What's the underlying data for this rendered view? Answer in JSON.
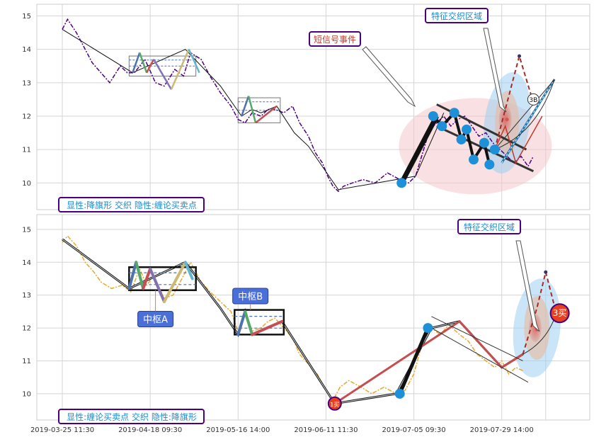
{
  "chart_data": [
    {
      "type": "line",
      "panel": "top",
      "y_ticks": [
        10,
        11,
        12,
        13,
        14,
        15
      ],
      "ylim": [
        9.2,
        15.35
      ],
      "grid": true,
      "price_color": "#4b0082",
      "price": [
        [
          0,
          14.6
        ],
        [
          3,
          14.9
        ],
        [
          8,
          14.5
        ],
        [
          12,
          14.1
        ],
        [
          17,
          13.6
        ],
        [
          22,
          13.3
        ],
        [
          27,
          13.0
        ],
        [
          33,
          13.5
        ],
        [
          37,
          13.3
        ],
        [
          41,
          13.3
        ],
        [
          47,
          13.7
        ],
        [
          53,
          13.0
        ],
        [
          58,
          12.9
        ],
        [
          64,
          13.4
        ],
        [
          69,
          13.2
        ],
        [
          73,
          13.9
        ],
        [
          79,
          13.7
        ],
        [
          84,
          13.2
        ],
        [
          90,
          12.7
        ],
        [
          96,
          12.3
        ],
        [
          100,
          11.9
        ],
        [
          104,
          11.8
        ],
        [
          108,
          12.1
        ],
        [
          113,
          12.0
        ],
        [
          117,
          12.2
        ],
        [
          121,
          12.2
        ],
        [
          126,
          12.1
        ],
        [
          131,
          12.3
        ],
        [
          135,
          11.8
        ],
        [
          140,
          11.4
        ],
        [
          144,
          10.9
        ],
        [
          148,
          10.6
        ],
        [
          151,
          10.2
        ],
        [
          154,
          9.9
        ],
        [
          157,
          9.75
        ],
        [
          160,
          9.9
        ],
        [
          165,
          10.0
        ],
        [
          171,
          10.1
        ],
        [
          178,
          10.0
        ],
        [
          185,
          10.3
        ],
        [
          192,
          10.1
        ],
        [
          197,
          10.0
        ],
        [
          201,
          10.2
        ],
        [
          205,
          10.9
        ],
        [
          209,
          11.6
        ],
        [
          213,
          11.8
        ],
        [
          217,
          12.0
        ],
        [
          221,
          11.7
        ],
        [
          225,
          11.9
        ],
        [
          229,
          12.0
        ],
        [
          233,
          11.7
        ],
        [
          237,
          11.4
        ],
        [
          241,
          11.5
        ],
        [
          245,
          11.2
        ],
        [
          249,
          11.0
        ],
        [
          253,
          10.8
        ],
        [
          257,
          10.6
        ],
        [
          261,
          10.8
        ],
        [
          265,
          10.5
        ],
        [
          268,
          10.8
        ]
      ],
      "trend": [
        [
          0,
          14.6
        ],
        [
          40,
          13.3
        ],
        [
          70,
          14.0
        ],
        [
          90,
          12.9
        ],
        [
          102,
          12.0
        ],
        [
          108,
          12.2
        ],
        [
          113,
          12.1
        ],
        [
          122,
          12.3
        ],
        [
          132,
          11.5
        ],
        [
          140,
          11.1
        ],
        [
          157,
          9.8
        ],
        [
          201,
          10.2
        ],
        [
          217,
          12.1
        ]
      ],
      "bi_segments": [
        {
          "from": [
            40,
            13.3
          ],
          "to": [
            44,
            13.9
          ],
          "color": "#4c72b0",
          "width": 2.5
        },
        {
          "from": [
            44,
            13.9
          ],
          "to": [
            48,
            13.3
          ],
          "color": "#55a868",
          "width": 2.5
        },
        {
          "from": [
            48,
            13.3
          ],
          "to": [
            52,
            13.7
          ],
          "color": "#c44e52",
          "width": 2.5
        },
        {
          "from": [
            52,
            13.7
          ],
          "to": [
            62,
            12.8
          ],
          "color": "#8172b2",
          "width": 2.5
        },
        {
          "from": [
            62,
            12.8
          ],
          "to": [
            72,
            14.0
          ],
          "color": "#ccb974",
          "width": 2.5
        },
        {
          "from": [
            72,
            14.0
          ],
          "to": [
            78,
            13.3
          ],
          "color": "#64b5cd",
          "width": 2.5
        },
        {
          "from": [
            102,
            12.0
          ],
          "to": [
            106,
            12.6
          ],
          "color": "#4c72b0",
          "width": 2.5
        },
        {
          "from": [
            106,
            12.6
          ],
          "to": [
            110,
            11.8
          ],
          "color": "#55a868",
          "width": 2.5
        },
        {
          "from": [
            110,
            11.8
          ],
          "to": [
            122,
            12.3
          ],
          "color": "#c44e52",
          "width": 2.5
        }
      ],
      "zhongshu": [
        {
          "x0": 38,
          "x1": 76,
          "y0": 13.2,
          "y1": 13.8
        },
        {
          "x0": 100,
          "x1": 124,
          "y0": 11.8,
          "y1": 12.55
        }
      ],
      "flag_line": [
        [
          193,
          10.0
        ],
        [
          213,
          12.0
        ]
      ],
      "flag_channel_upper": [
        [
          213,
          12.35
        ],
        [
          264,
          11.0
        ]
      ],
      "flag_channel_lower": [
        [
          213,
          11.7
        ],
        [
          268,
          10.35
        ]
      ],
      "flag_points": [
        [
          193,
          10.0
        ],
        [
          211,
          12.0
        ],
        [
          216,
          11.7
        ],
        [
          223,
          12.1
        ],
        [
          227,
          11.3
        ],
        [
          230,
          11.6
        ],
        [
          234,
          10.7
        ],
        [
          240,
          11.2
        ],
        [
          243,
          10.55
        ],
        [
          246,
          11.0
        ]
      ],
      "zigzag_flag": [
        [
          211,
          12.0
        ],
        [
          216,
          11.7
        ],
        [
          223,
          12.1
        ],
        [
          227,
          11.3
        ],
        [
          230,
          11.6
        ],
        [
          234,
          10.7
        ],
        [
          240,
          11.2
        ],
        [
          243,
          10.55
        ]
      ],
      "forecast_red": [
        [
          246,
          11.0
        ],
        [
          252,
          11.7
        ],
        [
          258,
          10.6
        ],
        [
          273,
          12.0
        ]
      ],
      "forecast_dash": [
        [
          246,
          11.0
        ],
        [
          260,
          13.8
        ],
        [
          268,
          12.4
        ]
      ],
      "forecast_blue": [
        [
          250,
          10.6
        ],
        [
          280,
          13.1
        ]
      ],
      "buy_label_top": "3B",
      "callout_event": "短信号事件",
      "callout_region": "特征交织区域",
      "legend": "显性:降旗形 交织 隐性:缠论买卖点"
    },
    {
      "type": "line",
      "panel": "bottom",
      "y_ticks": [
        10,
        11,
        12,
        13,
        14,
        15
      ],
      "ylim": [
        9.2,
        15.45
      ],
      "grid": true,
      "price_color": "#e8a62c",
      "x_ticks": [
        "2019-03-25 11:30",
        "2019-04-18 09:30",
        "2019-05-16 14:00",
        "2019-06-11 11:30",
        "2019-07-05 09:30",
        "2019-07-29 14:00"
      ],
      "price": [
        [
          0,
          14.6
        ],
        [
          3,
          14.8
        ],
        [
          8,
          14.5
        ],
        [
          13,
          14.0
        ],
        [
          18,
          13.7
        ],
        [
          22,
          13.4
        ],
        [
          28,
          13.2
        ],
        [
          34,
          13.3
        ],
        [
          39,
          13.1
        ],
        [
          44,
          13.8
        ],
        [
          48,
          13.3
        ],
        [
          52,
          13.6
        ],
        [
          58,
          12.9
        ],
        [
          63,
          13.0
        ],
        [
          68,
          13.5
        ],
        [
          73,
          14.0
        ],
        [
          79,
          13.4
        ],
        [
          84,
          13.1
        ],
        [
          90,
          12.8
        ],
        [
          96,
          12.5
        ],
        [
          100,
          11.9
        ],
        [
          104,
          12.5
        ],
        [
          108,
          11.9
        ],
        [
          113,
          12.0
        ],
        [
          117,
          12.2
        ],
        [
          121,
          12.3
        ],
        [
          126,
          12.0
        ],
        [
          131,
          11.7
        ],
        [
          135,
          11.2
        ],
        [
          140,
          10.9
        ],
        [
          145,
          10.6
        ],
        [
          150,
          10.1
        ],
        [
          154,
          9.8
        ],
        [
          158,
          10.2
        ],
        [
          163,
          10.4
        ],
        [
          170,
          10.2
        ],
        [
          176,
          10.0
        ],
        [
          183,
          10.2
        ],
        [
          190,
          10.0
        ],
        [
          195,
          10.1
        ],
        [
          200,
          10.6
        ],
        [
          205,
          11.6
        ],
        [
          210,
          12.0
        ],
        [
          215,
          11.8
        ],
        [
          220,
          12.1
        ],
        [
          226,
          11.8
        ],
        [
          231,
          11.6
        ],
        [
          236,
          11.2
        ],
        [
          241,
          11.0
        ],
        [
          246,
          10.8
        ],
        [
          250,
          11.0
        ],
        [
          254,
          10.6
        ],
        [
          258,
          10.8
        ],
        [
          262,
          10.7
        ]
      ],
      "trend": [
        [
          0,
          14.7
        ],
        [
          38,
          13.2
        ],
        [
          70,
          14.0
        ],
        [
          90,
          12.6
        ],
        [
          100,
          11.8
        ],
        [
          104,
          12.5
        ],
        [
          108,
          11.8
        ],
        [
          125,
          12.2
        ],
        [
          143,
          10.7
        ],
        [
          155,
          9.7
        ],
        [
          190,
          10.0
        ],
        [
          210,
          12.0
        ],
        [
          226,
          12.2
        ],
        [
          250,
          10.8
        ],
        [
          262,
          11.2
        ]
      ],
      "bi_segments": [
        {
          "from": [
            38,
            13.2
          ],
          "to": [
            42,
            14.0
          ],
          "color": "#4c72b0",
          "width": 4
        },
        {
          "from": [
            42,
            14.0
          ],
          "to": [
            46,
            13.2
          ],
          "color": "#55a868",
          "width": 4
        },
        {
          "from": [
            46,
            13.2
          ],
          "to": [
            50,
            13.8
          ],
          "color": "#c44e52",
          "width": 4
        },
        {
          "from": [
            50,
            13.8
          ],
          "to": [
            58,
            12.8
          ],
          "color": "#8172b2",
          "width": 4
        },
        {
          "from": [
            58,
            12.8
          ],
          "to": [
            70,
            14.0
          ],
          "color": "#ccb974",
          "width": 4
        },
        {
          "from": [
            70,
            14.0
          ],
          "to": [
            74,
            13.5
          ],
          "color": "#64b5cd",
          "width": 4
        },
        {
          "from": [
            100,
            11.8
          ],
          "to": [
            104,
            12.5
          ],
          "color": "#4c72b0",
          "width": 4
        },
        {
          "from": [
            104,
            12.5
          ],
          "to": [
            108,
            11.8
          ],
          "color": "#55a868",
          "width": 4
        },
        {
          "from": [
            108,
            11.8
          ],
          "to": [
            125,
            12.2
          ],
          "color": "#c44e52",
          "width": 4
        },
        {
          "from": [
            155,
            9.7
          ],
          "to": [
            226,
            12.2
          ],
          "color": "#c44e52",
          "width": 3
        },
        {
          "from": [
            226,
            12.2
          ],
          "to": [
            250,
            10.8
          ],
          "color": "#c44e52",
          "width": 3
        },
        {
          "from": [
            250,
            10.8
          ],
          "to": [
            262,
            11.2
          ],
          "color": "#c44e52",
          "width": 3
        }
      ],
      "zhongshu": [
        {
          "x0": 38,
          "x1": 76,
          "y0": 13.15,
          "y1": 13.85,
          "label": "中枢A"
        },
        {
          "x0": 98,
          "x1": 126,
          "y0": 11.8,
          "y1": 12.55,
          "label": "中枢B"
        }
      ],
      "thick_bi": [
        [
          192,
          10.0
        ],
        [
          208,
          12.0
        ]
      ],
      "channel_upper": [
        [
          210,
          12.35
        ],
        [
          262,
          11.0
        ]
      ],
      "channel_lower": [
        [
          210,
          12.0
        ],
        [
          265,
          10.35
        ]
      ],
      "buy_points": [
        {
          "x": 155,
          "y": 9.7,
          "label": "1买"
        },
        {
          "x": 283,
          "y": 12.45,
          "label": "3买"
        }
      ],
      "forecast_dash": [
        [
          262,
          11.2
        ],
        [
          270,
          12.6
        ],
        [
          275,
          13.7
        ],
        [
          281,
          12.45
        ]
      ],
      "callout_region": "特征交织区域",
      "legend": "显性:缠论买卖点 交织 隐性:降旗形"
    }
  ]
}
